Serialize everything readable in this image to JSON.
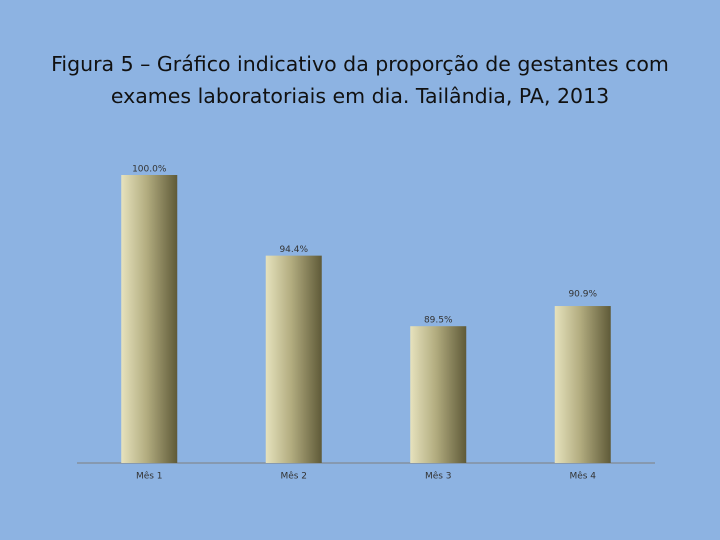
{
  "chart_data": {
    "type": "bar",
    "title": "Figura 5 – Gráfico indicativo da proporção de gestantes com exames laboratoriais em dia. Tailândia, PA, 2013",
    "categories": [
      "Mês 1",
      "Mês 2",
      "Mês 3",
      "Mês 4"
    ],
    "values": [
      100.0,
      94.4,
      89.5,
      90.9
    ],
    "value_labels": [
      "100.0%",
      "94.4%",
      "89.5%",
      "90.9%"
    ],
    "ylim": [
      80,
      100
    ]
  }
}
